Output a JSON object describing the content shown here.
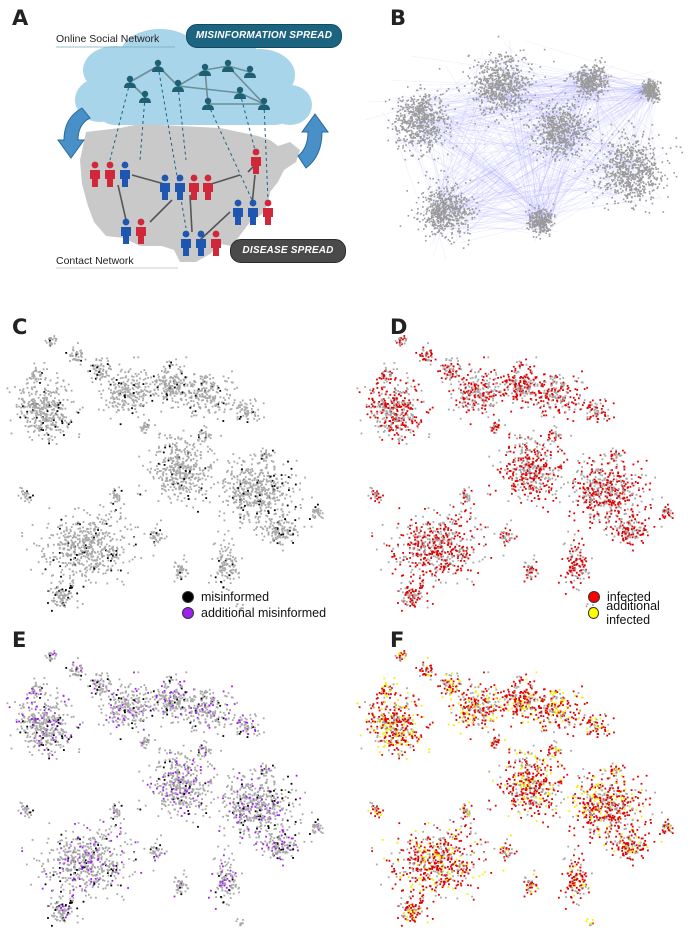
{
  "figure": {
    "panels": [
      {
        "letter": "A"
      },
      {
        "letter": "B"
      },
      {
        "letter": "C"
      },
      {
        "letter": "D"
      },
      {
        "letter": "E"
      },
      {
        "letter": "F"
      }
    ],
    "panel_a": {
      "online_label": "Online Social Network",
      "contact_label": "Contact Network",
      "misinfo_tag": "MISINFORMATION SPREAD",
      "disease_tag": "DISEASE SPREAD"
    },
    "legend_c": {
      "items": [
        {
          "label": "misinformed",
          "color": "#000000"
        },
        {
          "label": "additional misinformed",
          "color": "#a020f0"
        }
      ]
    },
    "legend_d": {
      "items": [
        {
          "label": "infected",
          "color": "#ff0000"
        },
        {
          "label": "additional infected",
          "color": "#ffff00"
        }
      ]
    },
    "colors": {
      "node_gray": "#a8a8a8",
      "edge_blue": "#6a6aff",
      "misinformed": "#000000",
      "additional_misinformed": "#a020f0",
      "infected": "#e00000",
      "additional_infected": "#f2f200",
      "person_red": "#d0283a",
      "person_blue": "#1f56b0",
      "person_teal": "#1d5f73",
      "cloud": "#a9d5ea",
      "map": "#c7c7c7",
      "misinfo_tag_bg": "#1d6480",
      "disease_tag_bg": "#4a4a4a"
    }
  }
}
